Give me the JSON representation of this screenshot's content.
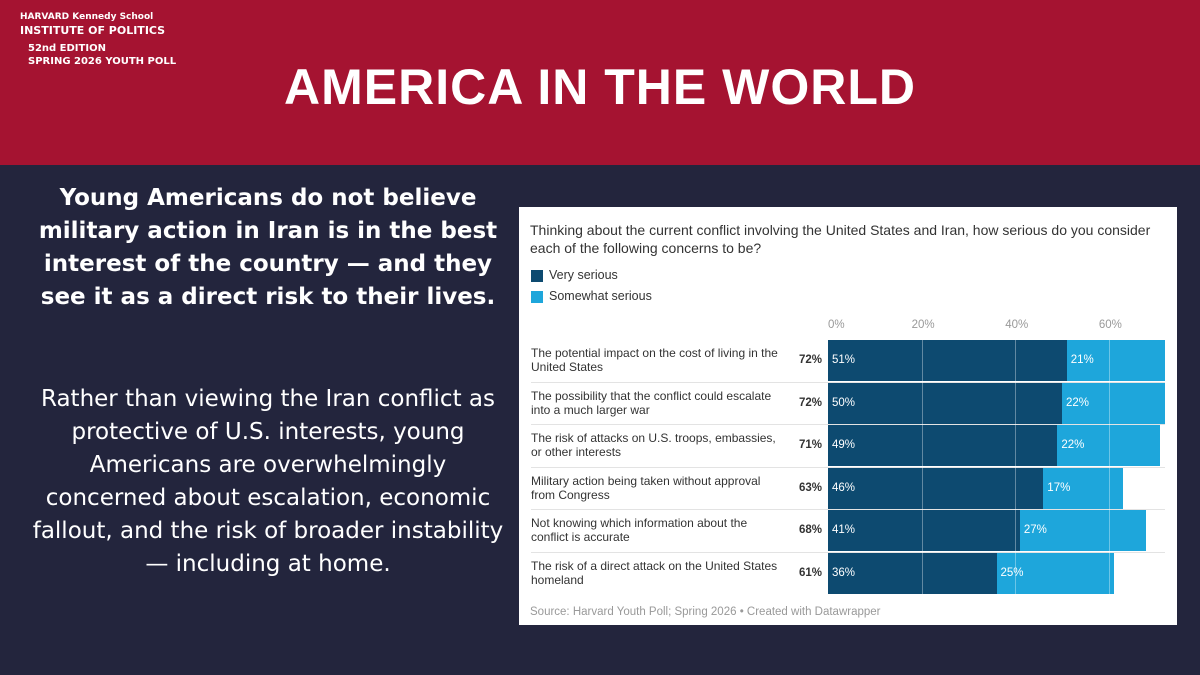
{
  "header": {
    "logo_line1": "HARVARD Kennedy School",
    "logo_line2": "INSTITUTE OF POLITICS",
    "edition": "52nd EDITION",
    "poll": "SPRING 2026 YOUTH POLL",
    "title": "AMERICA IN THE WORLD"
  },
  "body": {
    "headline": "Young Americans do not believe military action in Iran is in the best interest of the country — and they see it as a direct risk to their lives.",
    "paragraph": "Rather than viewing the Iran conflict as protective of U.S. interests, young Americans are overwhelmingly concerned about escalation, economic fallout, and the risk of broader instability — including at home."
  },
  "chart_data": {
    "type": "stacked-bar-horizontal",
    "title": "Thinking about the current conflict involving the United States and Iran, how serious do you consider each of the following concerns to be?",
    "categories": [
      "The potential impact on the cost of living in the United States",
      "The possibility that the conflict could escalate into a much larger war",
      "The risk of attacks on U.S. troops, embassies, or other interests",
      "Military action being taken without approval from Congress",
      "Not knowing which information about the conflict is accurate",
      "The risk of a direct attack on the United States homeland"
    ],
    "series": [
      {
        "name": "Very serious",
        "color": "#0d4a70",
        "values": [
          51,
          50,
          49,
          46,
          41,
          36
        ],
        "value_labels": [
          "51%",
          "50%",
          "49%",
          "46%",
          "41%",
          "36%"
        ]
      },
      {
        "name": "Somewhat serious",
        "color": "#1ea6db",
        "values": [
          21,
          22,
          22,
          17,
          27,
          25
        ],
        "value_labels": [
          "21%",
          "22%",
          "22%",
          "17%",
          "27%",
          "25%"
        ]
      }
    ],
    "totals": [
      72,
      72,
      71,
      63,
      68,
      61
    ],
    "total_labels": [
      "72%",
      "72%",
      "71%",
      "63%",
      "68%",
      "61%"
    ],
    "xlim": [
      0,
      72
    ],
    "xticks": [
      {
        "value": 0,
        "label": "0%"
      },
      {
        "value": 20,
        "label": "20%"
      },
      {
        "value": 40,
        "label": "40%"
      },
      {
        "value": 60,
        "label": "60%"
      }
    ],
    "source": "Source: Harvard Youth Poll; Spring 2026 • Created with Datawrapper"
  }
}
